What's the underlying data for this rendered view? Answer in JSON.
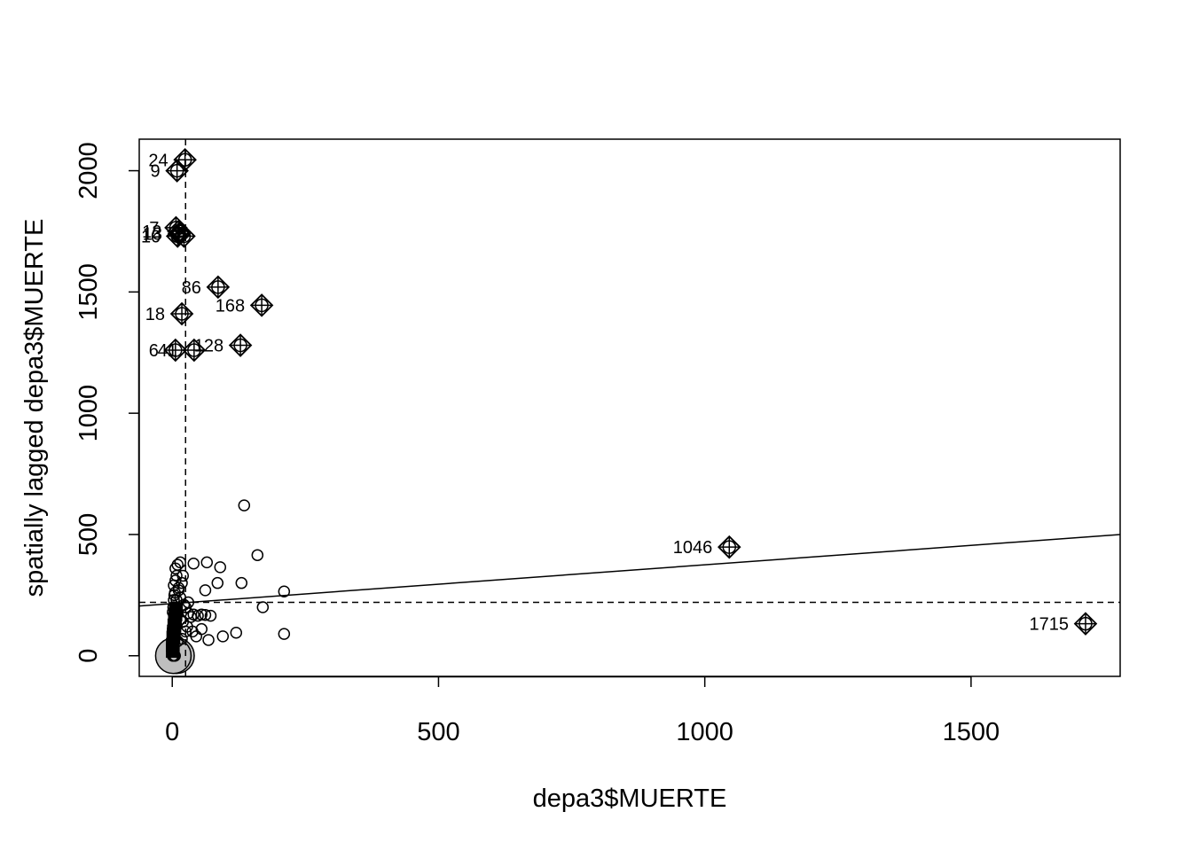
{
  "chart_data": {
    "type": "scatter",
    "title": "",
    "xlabel": "depa3$MUERTE",
    "ylabel": "spatially lagged depa3$MUERTE",
    "xlim": [
      -62,
      1780
    ],
    "ylim": [
      -85,
      2130
    ],
    "x_ticks": [
      0,
      500,
      1000,
      1500
    ],
    "y_ticks": [
      0,
      500,
      1000,
      1500,
      2000
    ],
    "x_tick_labels": [
      "0",
      "500",
      "1000",
      "1500"
    ],
    "y_tick_labels": [
      "0",
      "500",
      "1000",
      "1500",
      "2000"
    ],
    "grid": false,
    "legend": "none",
    "mean_x": 25,
    "mean_y": 220,
    "regression_line": {
      "intercept": 215,
      "slope": 0.16
    },
    "regular_points": [
      [
        1,
        110
      ],
      [
        2,
        90
      ],
      [
        3,
        140
      ],
      [
        4,
        160
      ],
      [
        5,
        120
      ],
      [
        1,
        180
      ],
      [
        2,
        200
      ],
      [
        3,
        230
      ],
      [
        4,
        250
      ],
      [
        5,
        260
      ],
      [
        3,
        290
      ],
      [
        6,
        310
      ],
      [
        8,
        330
      ],
      [
        6,
        360
      ],
      [
        10,
        375
      ],
      [
        15,
        385
      ],
      [
        18,
        300
      ],
      [
        20,
        330
      ],
      [
        12,
        270
      ],
      [
        15,
        240
      ],
      [
        22,
        210
      ],
      [
        25,
        200
      ],
      [
        30,
        175
      ],
      [
        35,
        160
      ],
      [
        40,
        170
      ],
      [
        48,
        165
      ],
      [
        55,
        170
      ],
      [
        62,
        168
      ],
      [
        72,
        165
      ],
      [
        28,
        120
      ],
      [
        38,
        100
      ],
      [
        45,
        80
      ],
      [
        55,
        110
      ],
      [
        68,
        65
      ],
      [
        95,
        80
      ],
      [
        120,
        95
      ],
      [
        130,
        300
      ],
      [
        85,
        300
      ],
      [
        62,
        270
      ],
      [
        90,
        365
      ],
      [
        65,
        385
      ],
      [
        40,
        380
      ],
      [
        135,
        620
      ],
      [
        160,
        415
      ],
      [
        170,
        200
      ],
      [
        210,
        265
      ],
      [
        210,
        90
      ],
      [
        20,
        140
      ],
      [
        25,
        100
      ],
      [
        18,
        70
      ],
      [
        10,
        60
      ],
      [
        15,
        150
      ],
      [
        30,
        220
      ],
      [
        8,
        230
      ],
      [
        12,
        280
      ]
    ],
    "square_points": [
      [
        1,
        20
      ],
      [
        1,
        45
      ],
      [
        2,
        75
      ],
      [
        3,
        100
      ],
      [
        4,
        125
      ],
      [
        5,
        150
      ],
      [
        6,
        170
      ],
      [
        7,
        190
      ]
    ],
    "zero_points": [
      [
        1,
        0
      ],
      [
        2,
        0
      ],
      [
        3,
        0
      ],
      [
        4,
        0
      ],
      [
        5,
        0
      ]
    ],
    "influential_points": [
      {
        "x": 24,
        "y": 2045,
        "label": "24"
      },
      {
        "x": 9,
        "y": 2000,
        "label": "9"
      },
      {
        "x": 7,
        "y": 1765,
        "label": "7"
      },
      {
        "x": 12,
        "y": 1750,
        "label": "12"
      },
      {
        "x": 13,
        "y": 1740,
        "label": "13"
      },
      {
        "x": 10,
        "y": 1730,
        "label": "10"
      },
      {
        "x": 22,
        "y": 1730,
        "label": ""
      },
      {
        "x": 86,
        "y": 1520,
        "label": "86"
      },
      {
        "x": 168,
        "y": 1445,
        "label": "168"
      },
      {
        "x": 18,
        "y": 1410,
        "label": "18"
      },
      {
        "x": 128,
        "y": 1280,
        "label": "128"
      },
      {
        "x": 6,
        "y": 1260,
        "label": "6"
      },
      {
        "x": 41,
        "y": 1260,
        "label": "41"
      },
      {
        "x": 1046,
        "y": 448,
        "label": "1046"
      },
      {
        "x": 1715,
        "y": 132,
        "label": "1715"
      }
    ]
  }
}
